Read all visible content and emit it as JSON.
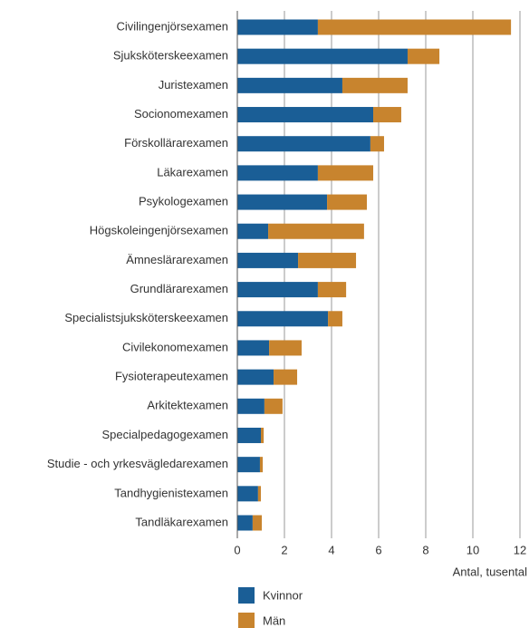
{
  "chart_data": {
    "type": "stacked_barh",
    "x_label": "Antal, tusental",
    "categories": [
      "Civilingenjörsexamen",
      "Sjuksköterskeexamen",
      "Juristexamen",
      "Socionomexamen",
      "Förskollärarexamen",
      "Läkarexamen",
      "Psykologexamen",
      "Högskoleingenjörsexamen",
      "Ämneslärarexamen",
      "Grundlärarexamen",
      "Specialistsjuksköterskeexamen",
      "Civilekonomexamen",
      "Fysioterapeutexamen",
      "Arkitektexamen",
      "Specialpedagogexamen",
      "Studie - och yrkesvägledarexamen",
      "Tandhygienistexamen",
      "Tandläkarexamen"
    ],
    "series": [
      {
        "name": "Kvinnor",
        "color": "#1a5e96",
        "values": [
          3.42,
          7.23,
          4.46,
          5.77,
          5.65,
          3.42,
          3.81,
          1.31,
          2.58,
          3.42,
          3.85,
          1.35,
          1.54,
          1.15,
          1.0,
          0.96,
          0.88,
          0.65
        ]
      },
      {
        "name": "Män",
        "color": "#c8842e",
        "values": [
          8.2,
          1.35,
          2.77,
          1.19,
          0.58,
          2.35,
          1.69,
          4.07,
          2.46,
          1.2,
          0.61,
          1.38,
          1.0,
          0.77,
          0.12,
          0.12,
          0.12,
          0.39
        ]
      }
    ],
    "xlim": [
      0,
      12
    ],
    "xticks": [
      0,
      2,
      4,
      6,
      8,
      10,
      12
    ],
    "grid": true
  }
}
